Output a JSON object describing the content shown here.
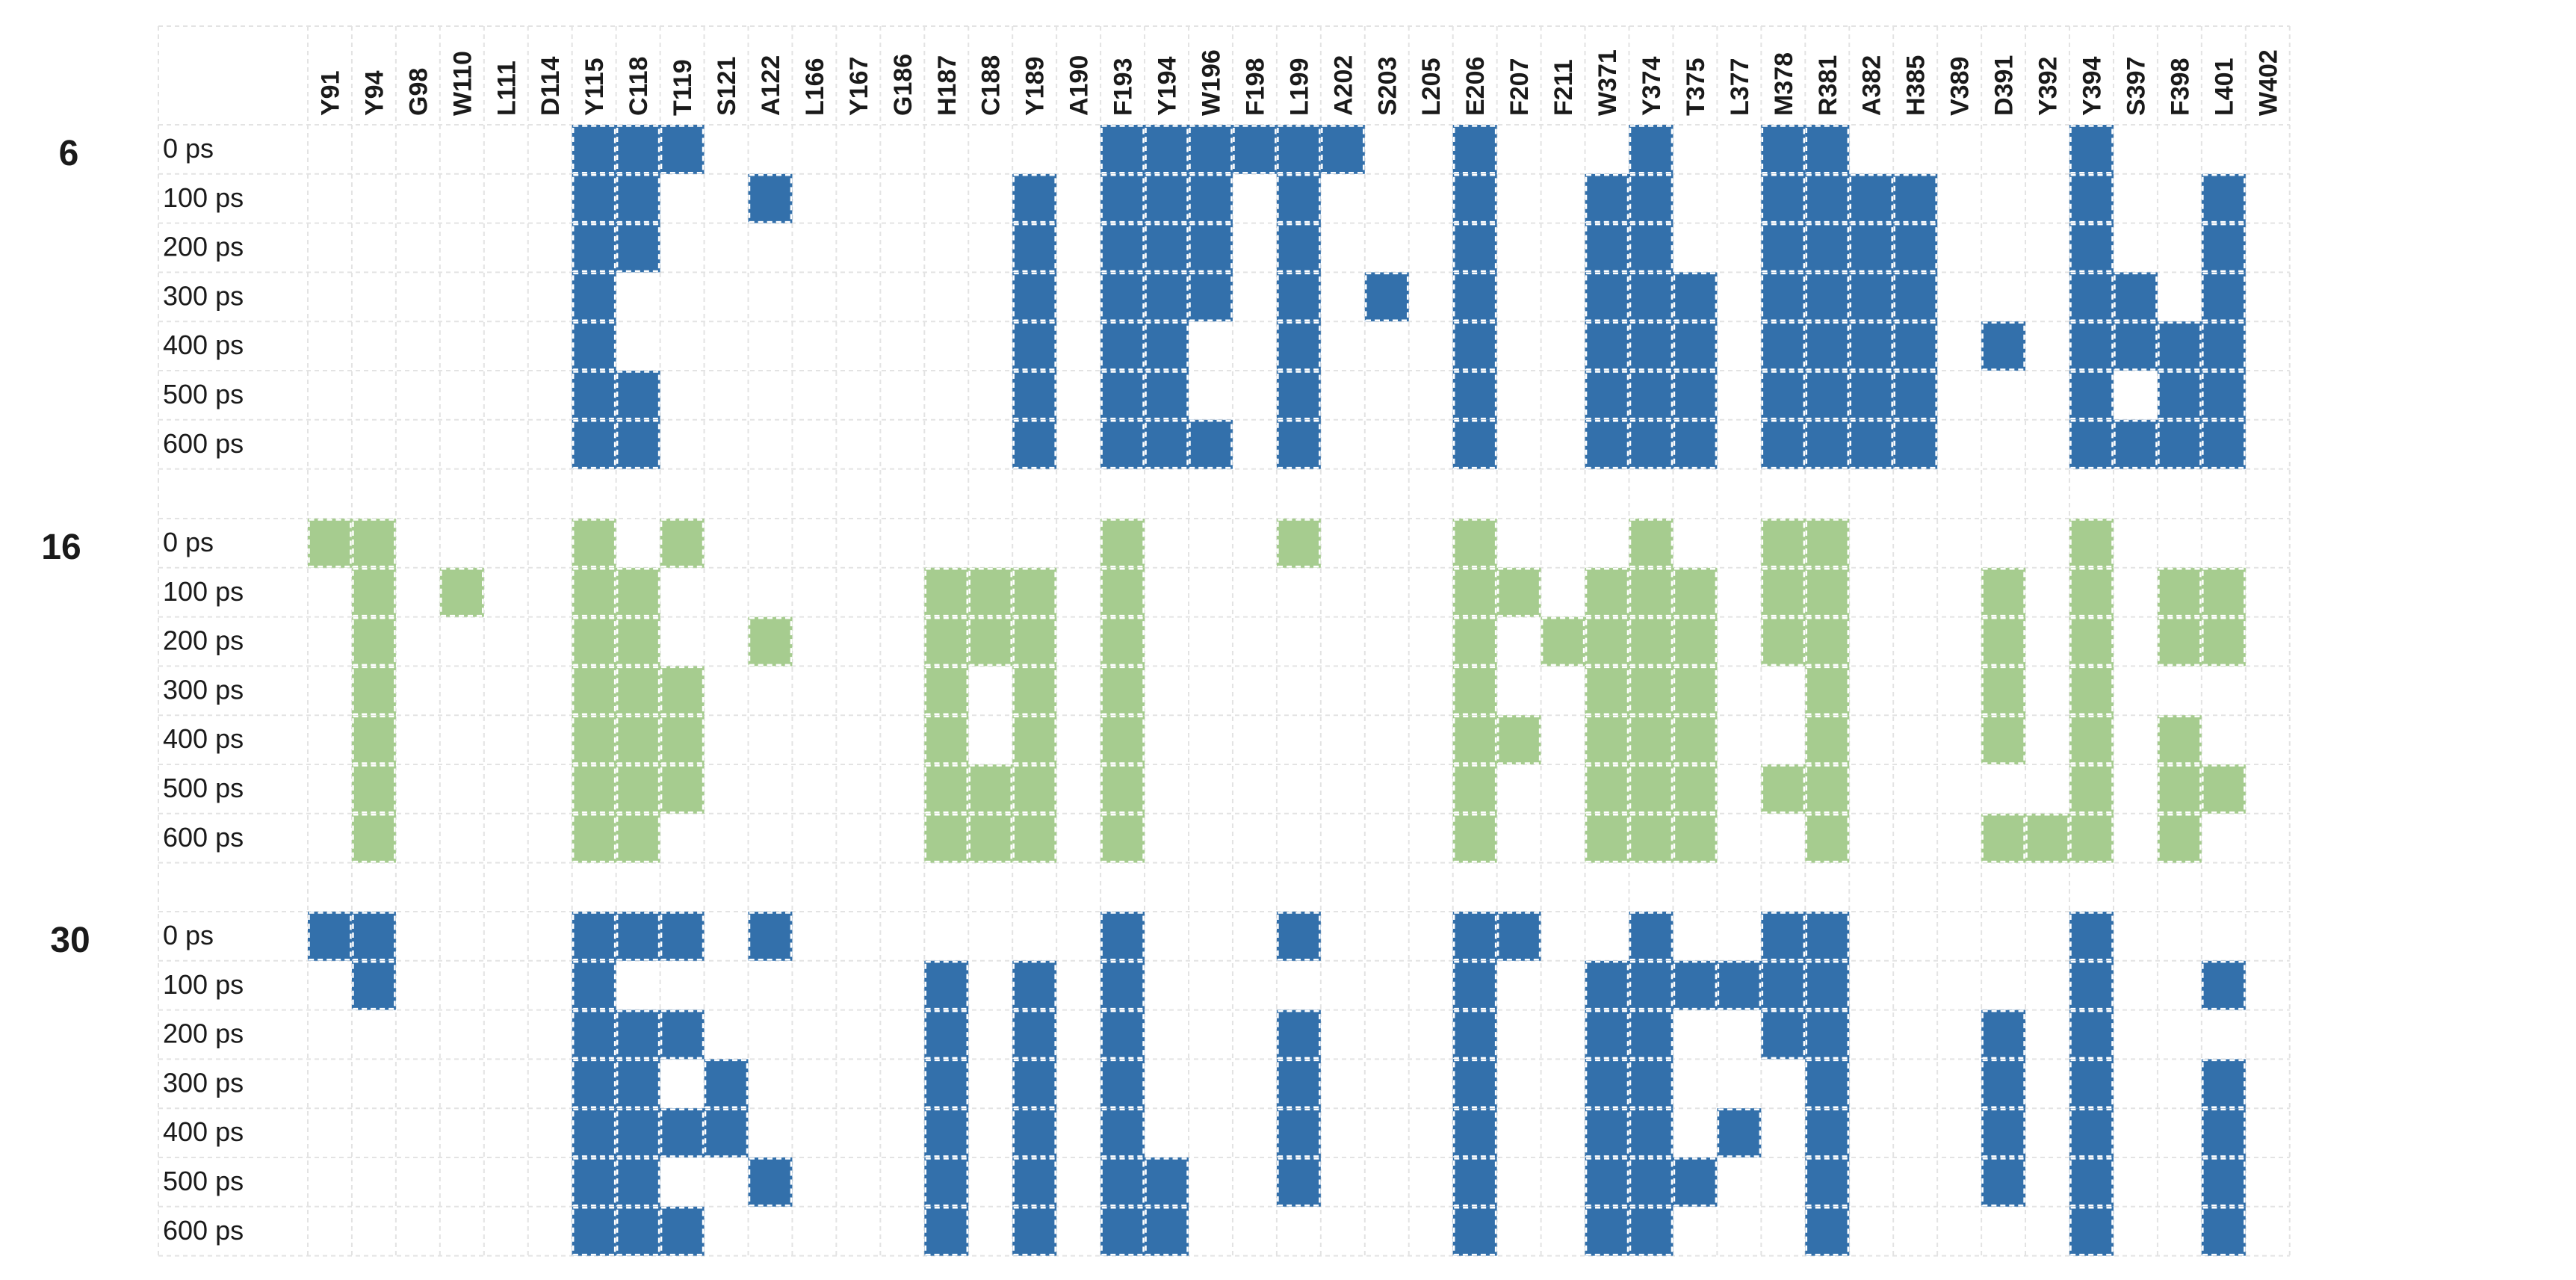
{
  "chart_data": {
    "type": "heatmap",
    "title": "",
    "xlabel": "",
    "ylabel": "",
    "grid": true,
    "columns": [
      "Y91",
      "Y94",
      "G98",
      "W110",
      "L111",
      "D114",
      "Y115",
      "C118",
      "T119",
      "S121",
      "A122",
      "L166",
      "Y167",
      "G186",
      "H187",
      "C188",
      "Y189",
      "A190",
      "F193",
      "Y194",
      "W196",
      "F198",
      "L199",
      "A202",
      "S203",
      "L205",
      "E206",
      "F207",
      "F211",
      "W371",
      "Y374",
      "T375",
      "L377",
      "M378",
      "R381",
      "A382",
      "H385",
      "V389",
      "D391",
      "Y392",
      "Y394",
      "S397",
      "F398",
      "L401",
      "W402"
    ],
    "row_labels": [
      "0 ps",
      "100 ps",
      "200 ps",
      "300 ps",
      "400 ps",
      "500 ps",
      "600 ps"
    ],
    "groups": [
      {
        "label": "6",
        "color": "#3370ab",
        "rows": {
          "0 ps": [
            "Y115",
            "C118",
            "T119",
            "F193",
            "Y194",
            "W196",
            "F198",
            "L199",
            "A202",
            "E206",
            "Y374",
            "M378",
            "R381",
            "Y394"
          ],
          "100 ps": [
            "Y115",
            "C118",
            "A122",
            "Y189",
            "F193",
            "Y194",
            "W196",
            "L199",
            "E206",
            "W371",
            "Y374",
            "M378",
            "R381",
            "A382",
            "H385",
            "Y394",
            "L401"
          ],
          "200 ps": [
            "Y115",
            "C118",
            "Y189",
            "F193",
            "Y194",
            "W196",
            "L199",
            "E206",
            "W371",
            "Y374",
            "M378",
            "R381",
            "A382",
            "H385",
            "Y394",
            "L401"
          ],
          "300 ps": [
            "Y115",
            "Y189",
            "F193",
            "Y194",
            "W196",
            "L199",
            "S203",
            "E206",
            "W371",
            "Y374",
            "T375",
            "M378",
            "R381",
            "A382",
            "H385",
            "Y394",
            "S397",
            "L401"
          ],
          "400 ps": [
            "Y115",
            "Y189",
            "F193",
            "Y194",
            "L199",
            "E206",
            "W371",
            "Y374",
            "T375",
            "M378",
            "R381",
            "A382",
            "H385",
            "D391",
            "Y394",
            "S397",
            "F398",
            "L401"
          ],
          "500 ps": [
            "Y115",
            "C118",
            "Y189",
            "F193",
            "Y194",
            "L199",
            "E206",
            "W371",
            "Y374",
            "T375",
            "M378",
            "R381",
            "A382",
            "H385",
            "Y394",
            "F398",
            "L401"
          ],
          "600 ps": [
            "Y115",
            "C118",
            "Y189",
            "F193",
            "Y194",
            "W196",
            "L199",
            "E206",
            "W371",
            "Y374",
            "T375",
            "M378",
            "R381",
            "A382",
            "H385",
            "Y394",
            "S397",
            "F398",
            "L401"
          ]
        }
      },
      {
        "label": "16",
        "color": "#a6cc8f",
        "rows": {
          "0 ps": [
            "Y91",
            "Y94",
            "Y115",
            "T119",
            "F193",
            "L199",
            "E206",
            "Y374",
            "M378",
            "R381",
            "Y394"
          ],
          "100 ps": [
            "Y94",
            "W110",
            "Y115",
            "C118",
            "H187",
            "C188",
            "Y189",
            "F193",
            "E206",
            "F207",
            "W371",
            "Y374",
            "T375",
            "M378",
            "R381",
            "D391",
            "Y394",
            "F398",
            "L401"
          ],
          "200 ps": [
            "Y94",
            "Y115",
            "C118",
            "A122",
            "H187",
            "C188",
            "Y189",
            "F193",
            "E206",
            "F211",
            "W371",
            "Y374",
            "T375",
            "M378",
            "R381",
            "D391",
            "Y394",
            "F398",
            "L401"
          ],
          "300 ps": [
            "Y94",
            "Y115",
            "C118",
            "T119",
            "H187",
            "Y189",
            "F193",
            "E206",
            "W371",
            "Y374",
            "T375",
            "R381",
            "D391",
            "Y394"
          ],
          "400 ps": [
            "Y94",
            "Y115",
            "C118",
            "T119",
            "H187",
            "Y189",
            "F193",
            "E206",
            "F207",
            "W371",
            "Y374",
            "T375",
            "R381",
            "D391",
            "Y394",
            "F398"
          ],
          "500 ps": [
            "Y94",
            "Y115",
            "C118",
            "T119",
            "H187",
            "C188",
            "Y189",
            "F193",
            "E206",
            "W371",
            "Y374",
            "T375",
            "M378",
            "R381",
            "Y394",
            "F398",
            "L401"
          ],
          "600 ps": [
            "Y94",
            "Y115",
            "C118",
            "H187",
            "C188",
            "Y189",
            "F193",
            "E206",
            "W371",
            "Y374",
            "T375",
            "R381",
            "D391",
            "Y392",
            "Y394",
            "F398"
          ]
        }
      },
      {
        "label": "30",
        "color": "#3370ab",
        "rows": {
          "0 ps": [
            "Y91",
            "Y94",
            "Y115",
            "C118",
            "T119",
            "A122",
            "F193",
            "L199",
            "E206",
            "F207",
            "Y374",
            "M378",
            "R381",
            "Y394"
          ],
          "100 ps": [
            "Y94",
            "Y115",
            "H187",
            "Y189",
            "F193",
            "E206",
            "W371",
            "Y374",
            "T375",
            "L377",
            "M378",
            "R381",
            "Y394",
            "L401"
          ],
          "200 ps": [
            "Y115",
            "C118",
            "T119",
            "H187",
            "Y189",
            "F193",
            "L199",
            "E206",
            "W371",
            "Y374",
            "M378",
            "R381",
            "D391",
            "Y394"
          ],
          "300 ps": [
            "Y115",
            "C118",
            "S121",
            "H187",
            "Y189",
            "F193",
            "L199",
            "E206",
            "W371",
            "Y374",
            "R381",
            "D391",
            "Y394",
            "L401"
          ],
          "400 ps": [
            "Y115",
            "C118",
            "T119",
            "S121",
            "H187",
            "Y189",
            "F193",
            "L199",
            "E206",
            "W371",
            "Y374",
            "L377",
            "R381",
            "D391",
            "Y394",
            "L401"
          ],
          "500 ps": [
            "Y115",
            "C118",
            "A122",
            "H187",
            "Y189",
            "F193",
            "Y194",
            "L199",
            "E206",
            "W371",
            "Y374",
            "T375",
            "R381",
            "D391",
            "Y394",
            "L401"
          ],
          "600 ps": [
            "Y115",
            "C118",
            "T119",
            "H187",
            "Y189",
            "F193",
            "Y194",
            "E206",
            "W371",
            "Y374",
            "R381",
            "Y394",
            "L401"
          ]
        }
      }
    ]
  }
}
